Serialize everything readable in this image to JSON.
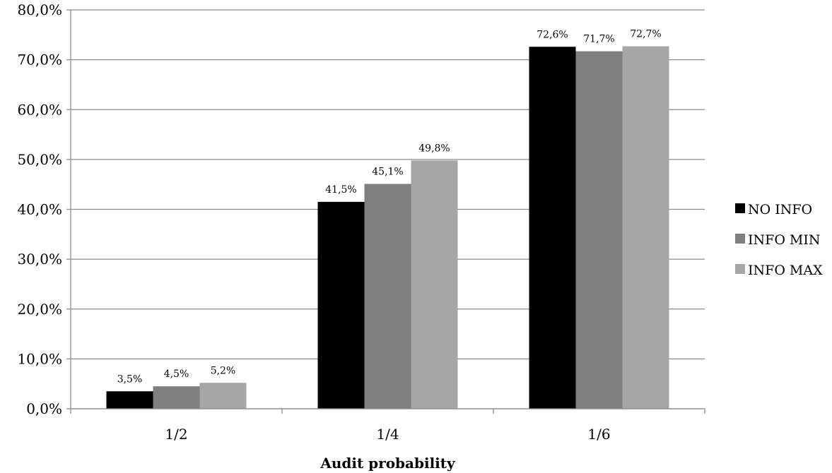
{
  "chart_data": {
    "type": "bar",
    "categories": [
      "1/2",
      "1/4",
      "1/6"
    ],
    "series": [
      {
        "name": "NO INFO",
        "values": [
          3.5,
          41.5,
          72.6
        ],
        "labels": [
          "3,5%",
          "41,5%",
          "72,6%"
        ],
        "color": "#000000"
      },
      {
        "name": "INFO MIN",
        "values": [
          4.5,
          45.1,
          71.7
        ],
        "labels": [
          "4,5%",
          "45,1%",
          "71,7%"
        ],
        "color": "#7f7f7f"
      },
      {
        "name": "INFO MAX",
        "values": [
          5.2,
          49.8,
          72.7
        ],
        "labels": [
          "5,2%",
          "49,8%",
          "72,7%"
        ],
        "color": "#a6a6a6"
      }
    ],
    "xlabel": "Audit probability",
    "ylabel": "",
    "ylim": [
      0,
      80
    ],
    "yticks": [
      0,
      10,
      20,
      30,
      40,
      50,
      60,
      70,
      80
    ],
    "ytick_labels": [
      "0,0%",
      "10,0%",
      "20,0%",
      "30,0%",
      "40,0%",
      "50,0%",
      "60,0%",
      "70,0%",
      "80,0%"
    ],
    "grid": "horizontal",
    "legend": "right"
  }
}
